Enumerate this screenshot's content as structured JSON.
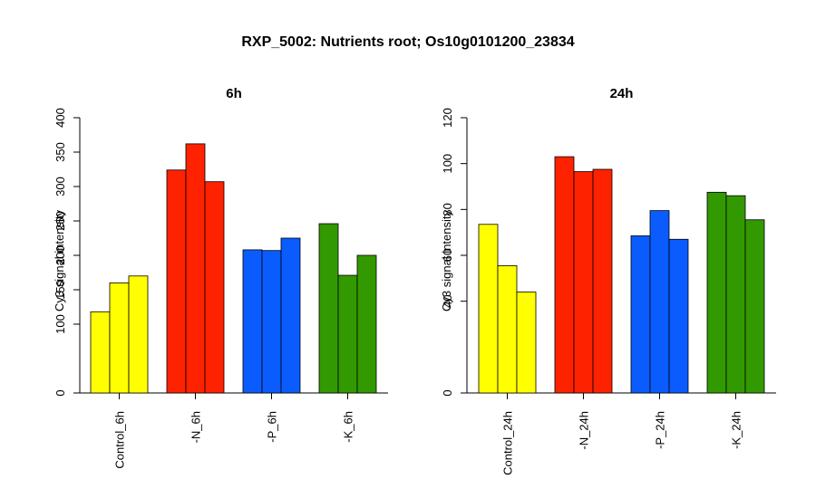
{
  "title": "RXP_5002: Nutrients root; Os10g0101200_23834",
  "colors": {
    "yellow": "#ffff00",
    "red": "#ff2200",
    "blue": "#0a5cff",
    "green": "#339900"
  },
  "chart_data": [
    {
      "type": "bar",
      "title": "6h",
      "ylabel": "Cy3 signal intensity",
      "xlabel": "",
      "ylim": [
        0,
        400
      ],
      "yticks": [
        0,
        100,
        150,
        200,
        250,
        300,
        350,
        400
      ],
      "grid": false,
      "groups": [
        {
          "label": "Control_6h",
          "color": "#ffff00",
          "values": [
            118,
            160,
            170
          ]
        },
        {
          "label": "-N_6h",
          "color": "#ff2200",
          "values": [
            324,
            362,
            307
          ]
        },
        {
          "label": "-P_6h",
          "color": "#0a5cff",
          "values": [
            208,
            207,
            225
          ]
        },
        {
          "label": "-K_6h",
          "color": "#339900",
          "values": [
            246,
            171,
            200
          ]
        }
      ]
    },
    {
      "type": "bar",
      "title": "24h",
      "ylabel": "Cy3 signal intensity",
      "xlabel": "",
      "ylim": [
        0,
        120
      ],
      "yticks": [
        0,
        40,
        60,
        80,
        100,
        120
      ],
      "grid": false,
      "groups": [
        {
          "label": "Control_24h",
          "color": "#ffff00",
          "values": [
            73.5,
            55.5,
            44
          ]
        },
        {
          "label": "-N_24h",
          "color": "#ff2200",
          "values": [
            103,
            96.5,
            97.5
          ]
        },
        {
          "label": "-P_24h",
          "color": "#0a5cff",
          "values": [
            68.5,
            79.5,
            67
          ]
        },
        {
          "label": "-K_24h",
          "color": "#339900",
          "values": [
            87.5,
            86,
            75.5
          ]
        }
      ]
    }
  ]
}
